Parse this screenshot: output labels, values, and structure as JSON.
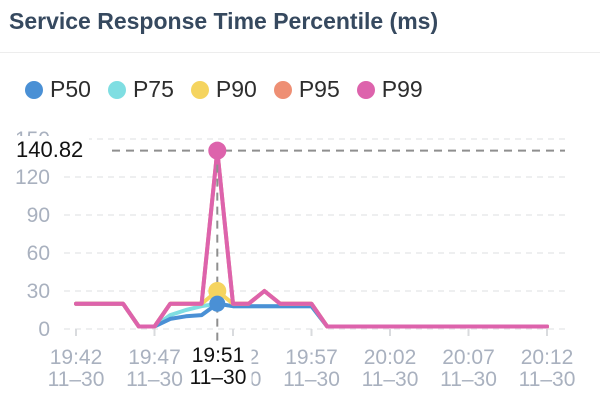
{
  "title": "Service Response Time Percentile (ms)",
  "colors": {
    "title": "#36495f",
    "axis_label": "#a9b1bf",
    "grid": "#e9eaec",
    "tick": "#d9dbde",
    "crosshair": "#8f8f8f",
    "annotation_text": "#111111",
    "legend_text": "#2d2d2d",
    "divider": "#ededed",
    "background": "#ffffff"
  },
  "chart_data": {
    "type": "line",
    "title": "Service Response Time Percentile (ms)",
    "x_start": "19:42",
    "x_end": "20:12",
    "x_interval_minutes": 1,
    "x_tick_labels": [
      {
        "index": 0,
        "time": "19:42",
        "date": "11–30"
      },
      {
        "index": 5,
        "time": "19:47",
        "date": "11–30"
      },
      {
        "index": 10,
        "time": "19:52",
        "date": "11–30"
      },
      {
        "index": 15,
        "time": "19:57",
        "date": "11–30"
      },
      {
        "index": 20,
        "time": "20:02",
        "date": "11–30"
      },
      {
        "index": 25,
        "time": "20:07",
        "date": "11–30"
      },
      {
        "index": 30,
        "time": "20:12",
        "date": "11–30"
      }
    ],
    "ylim": [
      0,
      150
    ],
    "y_ticks": [
      0,
      30,
      60,
      90,
      120,
      150
    ],
    "grid": "horizontal dashed",
    "legend_position": "top",
    "series": [
      {
        "name": "P50",
        "color": "#4a90d5",
        "values": [
          20,
          20,
          20,
          20,
          2,
          2,
          8,
          10,
          11,
          20,
          18,
          18,
          18,
          18,
          18,
          18,
          2,
          2,
          2,
          2,
          2,
          2,
          2,
          2,
          2,
          2,
          2,
          2,
          2,
          2,
          2
        ]
      },
      {
        "name": "P75",
        "color": "#7fdee2",
        "values": [
          20,
          20,
          20,
          20,
          2,
          2,
          11,
          15,
          18,
          20,
          18,
          18,
          18,
          18,
          18,
          18,
          2,
          2,
          2,
          2,
          2,
          2,
          2,
          2,
          2,
          2,
          2,
          2,
          2,
          2,
          2
        ]
      },
      {
        "name": "P90",
        "color": "#f5d45f",
        "values": [
          20,
          20,
          20,
          20,
          2,
          2,
          20,
          20,
          20,
          30,
          20,
          20,
          30,
          20,
          20,
          20,
          2,
          2,
          2,
          2,
          2,
          2,
          2,
          2,
          2,
          2,
          2,
          2,
          2,
          2,
          2
        ]
      },
      {
        "name": "P95",
        "color": "#ee8f74",
        "values": [
          20,
          20,
          20,
          20,
          2,
          2,
          20,
          20,
          20,
          140.82,
          20,
          20,
          30,
          20,
          20,
          20,
          2,
          2,
          2,
          2,
          2,
          2,
          2,
          2,
          2,
          2,
          2,
          2,
          2,
          2,
          2
        ]
      },
      {
        "name": "P99",
        "color": "#dd63ac",
        "values": [
          20,
          20,
          20,
          20,
          2,
          2,
          20,
          20,
          20,
          140.82,
          20,
          20,
          30,
          20,
          20,
          20,
          2,
          2,
          2,
          2,
          2,
          2,
          2,
          2,
          2,
          2,
          2,
          2,
          2,
          2,
          2
        ]
      }
    ],
    "draw_order": [
      "P75",
      "P50",
      "P90",
      "P95",
      "P99"
    ],
    "markers": [
      {
        "series": "P90",
        "index": 9,
        "value": 30
      },
      {
        "series": "P50",
        "index": 9,
        "value": 20
      },
      {
        "series": "P99",
        "index": 9,
        "value": 140.82
      }
    ],
    "annotation": {
      "label": "140.82",
      "value": 140.82,
      "series": "P99",
      "time": "19:51",
      "date": "11–30",
      "index": 9
    }
  }
}
